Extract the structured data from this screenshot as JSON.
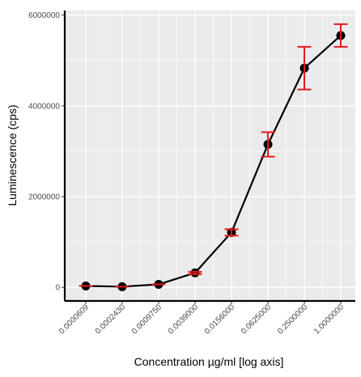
{
  "chart_data": {
    "type": "line",
    "xlabel": "Concentration µg/ml [log axis]",
    "ylabel": "Luminescence (cps)",
    "x_scale": "log",
    "categories": [
      "0.0000609",
      "0.0002430",
      "0.0009750",
      "0.0039000",
      "0.0156000",
      "0.0625000",
      "0.2500000",
      "1.0000000"
    ],
    "x": [
      6.09e-05,
      0.000243,
      0.000975,
      0.0039,
      0.0156,
      0.0625,
      0.25,
      1.0
    ],
    "y_ticks": [
      0,
      2000000,
      4000000,
      6000000
    ],
    "y_tick_labels": [
      "0",
      "2000000",
      "4000000",
      "6000000"
    ],
    "ylim": [
      -300000,
      6100000
    ],
    "grid": true,
    "series": [
      {
        "values": [
          30000,
          15000,
          65000,
          320000,
          1210000,
          3150000,
          4830000,
          5550000
        ],
        "error_lower": [
          0,
          0,
          0,
          290000,
          1140000,
          2880000,
          4360000,
          5300000
        ],
        "error_upper": [
          0,
          0,
          0,
          340000,
          1280000,
          3420000,
          5300000,
          5800000
        ]
      }
    ],
    "colors": {
      "line": "#000000",
      "point": "#000000",
      "error_bar": "#e8191e",
      "panel_background": "#ebebeb",
      "grid": "#ffffff"
    }
  }
}
